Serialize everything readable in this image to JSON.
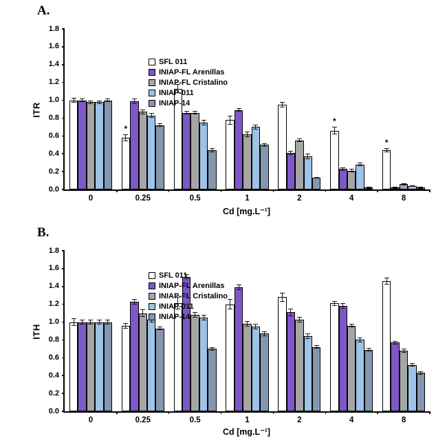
{
  "chart_data": [
    {
      "panel_label": "A.",
      "type": "bar",
      "title": "",
      "xlabel": "Cd [mg.L⁻¹]",
      "ylabel": "ITR",
      "ylim": [
        0,
        1.8
      ],
      "ytick_step": 0.2,
      "grid": false,
      "legend_position": "top-left-inside",
      "categories": [
        "0",
        "0.25",
        "0.5",
        "1",
        "2",
        "4",
        "8"
      ],
      "series": [
        {
          "name": "SFL 011",
          "color": "#FFFFFF",
          "values": [
            1.0,
            0.58,
            1.13,
            0.78,
            0.95,
            0.66,
            0.44
          ],
          "errors": [
            0.03,
            0.04,
            0.05,
            0.05,
            0.03,
            0.04,
            0.02
          ]
        },
        {
          "name": "INIAP-FL Arenillas",
          "color": "#7E57C8",
          "values": [
            1.0,
            0.99,
            0.86,
            0.89,
            0.41,
            0.23,
            0.02
          ],
          "errors": [
            0.02,
            0.03,
            0.02,
            0.02,
            0.02,
            0.02,
            0.01
          ]
        },
        {
          "name": "INIAP-FL Cristalino",
          "color": "#A6A6A6",
          "values": [
            0.98,
            0.87,
            0.86,
            0.62,
            0.55,
            0.21,
            0.06
          ],
          "errors": [
            0.02,
            0.03,
            0.02,
            0.03,
            0.02,
            0.02,
            0.01
          ]
        },
        {
          "name": "INIAP-011",
          "color": "#9DC3E6",
          "values": [
            0.98,
            0.83,
            0.75,
            0.7,
            0.37,
            0.28,
            0.04
          ],
          "errors": [
            0.02,
            0.03,
            0.03,
            0.03,
            0.03,
            0.02,
            0.01
          ]
        },
        {
          "name": "INIAP-14",
          "color": "#8497B0",
          "values": [
            1.0,
            0.72,
            0.44,
            0.5,
            0.13,
            0.02,
            0.02
          ],
          "errors": [
            0.02,
            0.02,
            0.02,
            0.02,
            0.01,
            0.01,
            0.01
          ]
        }
      ],
      "annotations": [
        {
          "text": "*",
          "series": "SFL 011",
          "series_index": 0,
          "category": "0.25",
          "category_index": 1
        },
        {
          "text": "*",
          "series": "SFL 011",
          "series_index": 0,
          "category": "4",
          "category_index": 5
        },
        {
          "text": "*",
          "series": "SFL 011",
          "series_index": 0,
          "category": "8",
          "category_index": 6
        }
      ]
    },
    {
      "panel_label": "B.",
      "type": "bar",
      "title": "",
      "xlabel": "Cd [mg.L⁻¹]",
      "ylabel": "ITH",
      "ylim": [
        0,
        1.8
      ],
      "ytick_step": 0.2,
      "grid": false,
      "legend_position": "top-left-inside",
      "categories": [
        "0",
        "0.25",
        "0.5",
        "1",
        "2",
        "4",
        "8"
      ],
      "series": [
        {
          "name": "SFL 011",
          "color": "#FFFFFF",
          "values": [
            1.0,
            0.96,
            1.21,
            1.2,
            1.28,
            1.21,
            1.46
          ],
          "errors": [
            0.04,
            0.03,
            0.07,
            0.06,
            0.05,
            0.03,
            0.04
          ]
        },
        {
          "name": "INIAP-FL Arenillas",
          "color": "#7E57C8",
          "values": [
            1.0,
            1.23,
            1.51,
            1.39,
            1.11,
            1.18,
            0.77
          ],
          "errors": [
            0.03,
            0.03,
            0.03,
            0.03,
            0.04,
            0.03,
            0.02
          ]
        },
        {
          "name": "INIAP-FL Cristalino",
          "color": "#A6A6A6",
          "values": [
            1.0,
            1.1,
            1.08,
            0.98,
            1.03,
            0.96,
            0.68
          ],
          "errors": [
            0.03,
            0.04,
            0.03,
            0.03,
            0.03,
            0.02,
            0.02
          ]
        },
        {
          "name": "INIAP-011",
          "color": "#9DC3E6",
          "values": [
            1.0,
            1.03,
            1.05,
            0.95,
            0.84,
            0.8,
            0.52
          ],
          "errors": [
            0.03,
            0.03,
            0.03,
            0.03,
            0.03,
            0.03,
            0.02
          ]
        },
        {
          "name": "INIAP-14",
          "color": "#8497B0",
          "values": [
            1.0,
            0.93,
            0.7,
            0.87,
            0.72,
            0.69,
            0.43
          ],
          "errors": [
            0.03,
            0.02,
            0.02,
            0.03,
            0.02,
            0.02,
            0.02
          ]
        }
      ],
      "annotations": []
    }
  ]
}
